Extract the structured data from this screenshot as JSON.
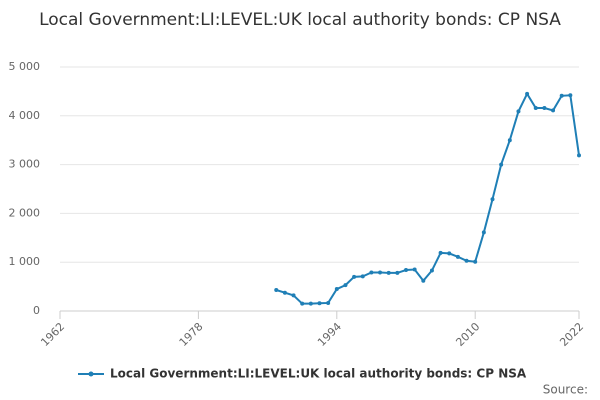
{
  "chart_data": {
    "type": "line",
    "title": "Local Government:LI:LEVEL:UK local authority bonds: CP NSA",
    "source": "Source:",
    "x": [
      1987,
      1988,
      1989,
      1990,
      1991,
      1992,
      1993,
      1994,
      1995,
      1996,
      1997,
      1998,
      1999,
      2000,
      2001,
      2002,
      2003,
      2004,
      2005,
      2006,
      2007,
      2008,
      2009,
      2010,
      2011,
      2012,
      2013,
      2014,
      2015,
      2016,
      2017,
      2018,
      2019,
      2020,
      2021,
      2022
    ],
    "series": [
      {
        "name": "Local Government:LI:LEVEL:UK local authority bonds: CP NSA",
        "color": "#1f7fb6",
        "values": [
          430,
          375,
          320,
          150,
          150,
          160,
          165,
          450,
          530,
          700,
          710,
          790,
          790,
          780,
          780,
          840,
          850,
          620,
          830,
          1190,
          1180,
          1110,
          1030,
          1010,
          1610,
          2290,
          3000,
          3500,
          4090,
          4450,
          4160,
          4160,
          4110,
          4410,
          4420,
          3190
        ]
      }
    ],
    "xlim": [
      1962,
      2022
    ],
    "xticks": [
      1962,
      1978,
      1994,
      2010,
      2022
    ],
    "ylim": [
      0,
      5000
    ],
    "yticks": [
      0,
      {
        "value": 1000,
        "label": "1 000"
      },
      {
        "value": 2000,
        "label": "2 000"
      },
      {
        "value": 3000,
        "label": "3 000"
      },
      {
        "value": 4000,
        "label": "4 000"
      },
      {
        "value": 5000,
        "label": "5 000"
      }
    ],
    "grid": true
  }
}
